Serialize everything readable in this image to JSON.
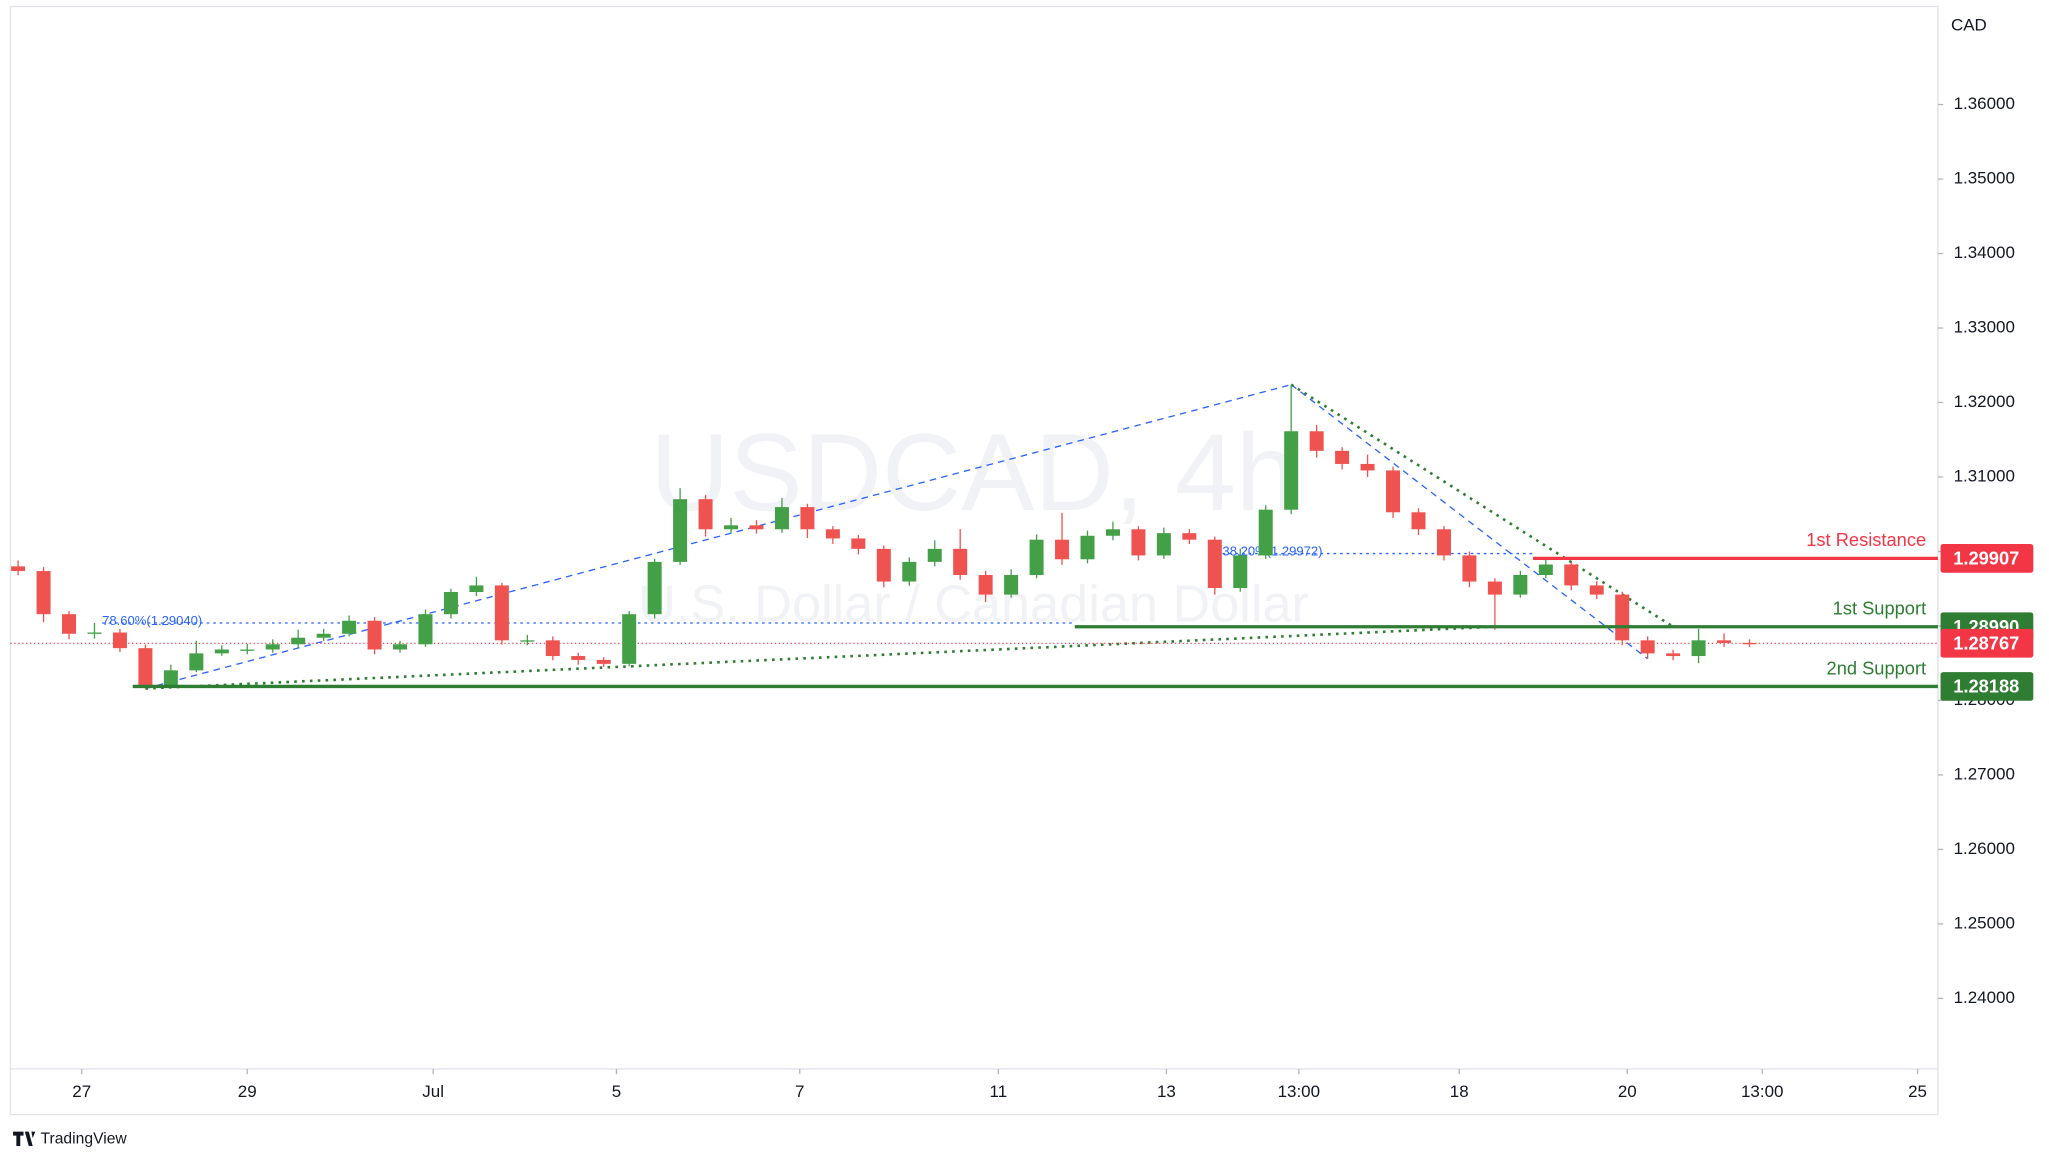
{
  "chart_data": {
    "type": "candlestick",
    "title": "USDCAD, 4h",
    "subtitle": "U.S. Dollar / Canadian Dollar",
    "currency": "CAD",
    "brand": "TradingView",
    "up_color": "#43a047",
    "down_color": "#ef5350",
    "open": [
      1.298,
      1.29737,
      1.29158,
      1.28895,
      1.28912,
      1.28702,
      1.28193,
      1.28404,
      1.28632,
      1.28684,
      1.28684,
      1.28754,
      1.28842,
      1.28895,
      1.2907,
      1.28684,
      1.28754,
      1.29158,
      1.29456,
      1.29544,
      1.28807,
      1.28807,
      1.28596,
      1.28544,
      1.28491,
      1.29158,
      1.2986,
      1.30702,
      1.30298,
      1.30351,
      1.30298,
      1.30596,
      1.30298,
      1.30175,
      1.30035,
      1.29596,
      1.2986,
      1.30035,
      1.29684,
      1.29421,
      1.29684,
      1.30158,
      1.29895,
      1.30211,
      1.30298,
      1.29947,
      1.30246,
      1.30158,
      1.29509,
      1.29947,
      1.30561,
      1.31614,
      1.31351,
      1.31175,
      1.31088,
      1.30526,
      1.30298,
      1.29947,
      1.29596,
      1.29421,
      1.29684,
      1.29825,
      1.29544,
      1.29421,
      1.28807,
      1.28632,
      1.28596,
      1.28807,
      1.28772
    ],
    "high": [
      1.2988,
      1.2979,
      1.292,
      1.2904,
      1.2896,
      1.2875,
      1.2848,
      1.288,
      1.2874,
      1.2876,
      1.2882,
      1.2895,
      1.2896,
      1.2914,
      1.2912,
      1.288,
      1.2922,
      1.295,
      1.2966,
      1.2958,
      1.2888,
      1.2886,
      1.2864,
      1.2858,
      1.292,
      1.299,
      1.3085,
      1.3076,
      1.3045,
      1.3042,
      1.3072,
      1.3064,
      1.3034,
      1.3022,
      1.3008,
      1.2992,
      1.3015,
      1.303,
      1.2974,
      1.2976,
      1.3023,
      1.3052,
      1.3028,
      1.304,
      1.3034,
      1.3032,
      1.303,
      1.302,
      1.3004,
      1.3062,
      1.3224,
      1.317,
      1.314,
      1.313,
      1.3114,
      1.3058,
      1.3034,
      1.3,
      1.2964,
      1.2974,
      1.299,
      1.2986,
      1.296,
      1.2946,
      1.2886,
      1.2868,
      1.2896,
      1.289,
      1.2882
    ],
    "low": [
      1.2968,
      1.2905,
      1.2882,
      1.2883,
      1.2865,
      1.2816,
      1.2817,
      1.2838,
      1.286,
      1.2862,
      1.2864,
      1.287,
      1.288,
      1.2886,
      1.2862,
      1.2864,
      1.2872,
      1.291,
      1.294,
      1.2875,
      1.2874,
      1.2854,
      1.2848,
      1.2845,
      1.2846,
      1.291,
      1.2982,
      1.302,
      1.3025,
      1.3024,
      1.3025,
      1.3018,
      1.301,
      1.2996,
      1.2952,
      1.2954,
      1.298,
      1.2962,
      1.2932,
      1.2938,
      1.2964,
      1.2982,
      1.2984,
      1.3015,
      1.2988,
      1.299,
      1.301,
      1.2942,
      1.2946,
      1.299,
      1.305,
      1.3126,
      1.311,
      1.31,
      1.3045,
      1.3022,
      1.2988,
      1.2952,
      1.2895,
      1.2938,
      1.2964,
      1.2948,
      1.2936,
      1.2874,
      1.2856,
      1.2854,
      1.285,
      1.2872,
      1.2872
    ],
    "close": [
      1.29737,
      1.29158,
      1.28895,
      1.28912,
      1.28702,
      1.28193,
      1.28404,
      1.28632,
      1.28684,
      1.28684,
      1.28754,
      1.28842,
      1.28895,
      1.2907,
      1.28684,
      1.28754,
      1.29158,
      1.29456,
      1.29544,
      1.28807,
      1.28807,
      1.28596,
      1.28544,
      1.28491,
      1.29158,
      1.2986,
      1.30702,
      1.30298,
      1.30351,
      1.30298,
      1.30596,
      1.30298,
      1.30175,
      1.30035,
      1.29596,
      1.2986,
      1.30035,
      1.29684,
      1.29421,
      1.29684,
      1.30158,
      1.29895,
      1.30211,
      1.30298,
      1.29947,
      1.30246,
      1.30158,
      1.29509,
      1.29947,
      1.30561,
      1.31614,
      1.31351,
      1.31175,
      1.31088,
      1.30526,
      1.30298,
      1.29947,
      1.29596,
      1.29421,
      1.29684,
      1.29825,
      1.29544,
      1.29421,
      1.28807,
      1.28632,
      1.28596,
      1.28807,
      1.28772,
      1.28767
    ],
    "ylim": [
      1.23053,
      1.37316
    ],
    "yticks": [
      {
        "value": 1.24,
        "label": "1.24000"
      },
      {
        "value": 1.25,
        "label": "1.25000"
      },
      {
        "value": 1.26,
        "label": "1.26000"
      },
      {
        "value": 1.27,
        "label": "1.27000"
      },
      {
        "value": 1.28,
        "label": "1.28000"
      },
      {
        "value": 1.29,
        "label": "1.29000"
      },
      {
        "value": 1.3,
        "label": "1.30000"
      },
      {
        "value": 1.31,
        "label": "1.31000"
      },
      {
        "value": 1.32,
        "label": "1.32000"
      },
      {
        "value": 1.33,
        "label": "1.33000"
      },
      {
        "value": 1.34,
        "label": "1.34000"
      },
      {
        "value": 1.35,
        "label": "1.35000"
      },
      {
        "value": 1.36,
        "label": "1.36000"
      }
    ],
    "xlim": [
      -0.3,
      75.4
    ],
    "xticks": [
      {
        "value": 2.5,
        "label": "27"
      },
      {
        "value": 9,
        "label": "29"
      },
      {
        "value": 16.3,
        "label": "Jul"
      },
      {
        "value": 23.5,
        "label": "5"
      },
      {
        "value": 30.7,
        "label": "7"
      },
      {
        "value": 38.5,
        "label": "11"
      },
      {
        "value": 45.1,
        "label": "13"
      },
      {
        "value": 50.3,
        "label": "13:00"
      },
      {
        "value": 56.6,
        "label": "18"
      },
      {
        "value": 63.2,
        "label": "20"
      },
      {
        "value": 68.5,
        "label": "13:00"
      },
      {
        "value": 74.6,
        "label": "25"
      }
    ],
    "levels": [
      {
        "name": "1st Resistance",
        "value": 1.29907,
        "value_label": "1.29907",
        "color": "#f23645"
      },
      {
        "name": "1st Support",
        "value": 1.2899,
        "value_label": "1.28990",
        "color": "#2e7d32"
      },
      {
        "name": "2nd Support",
        "value": 1.28188,
        "value_label": "1.28188",
        "color": "#2e7d32"
      }
    ],
    "last_price": {
      "value": 1.28767,
      "value_label": "1.28767",
      "color": "#f23645"
    },
    "fib_levels": [
      {
        "label": "78.60%(1.29040)",
        "value": 1.2904
      },
      {
        "label": "38.20%(1.29972)",
        "value": 1.29972
      }
    ]
  }
}
